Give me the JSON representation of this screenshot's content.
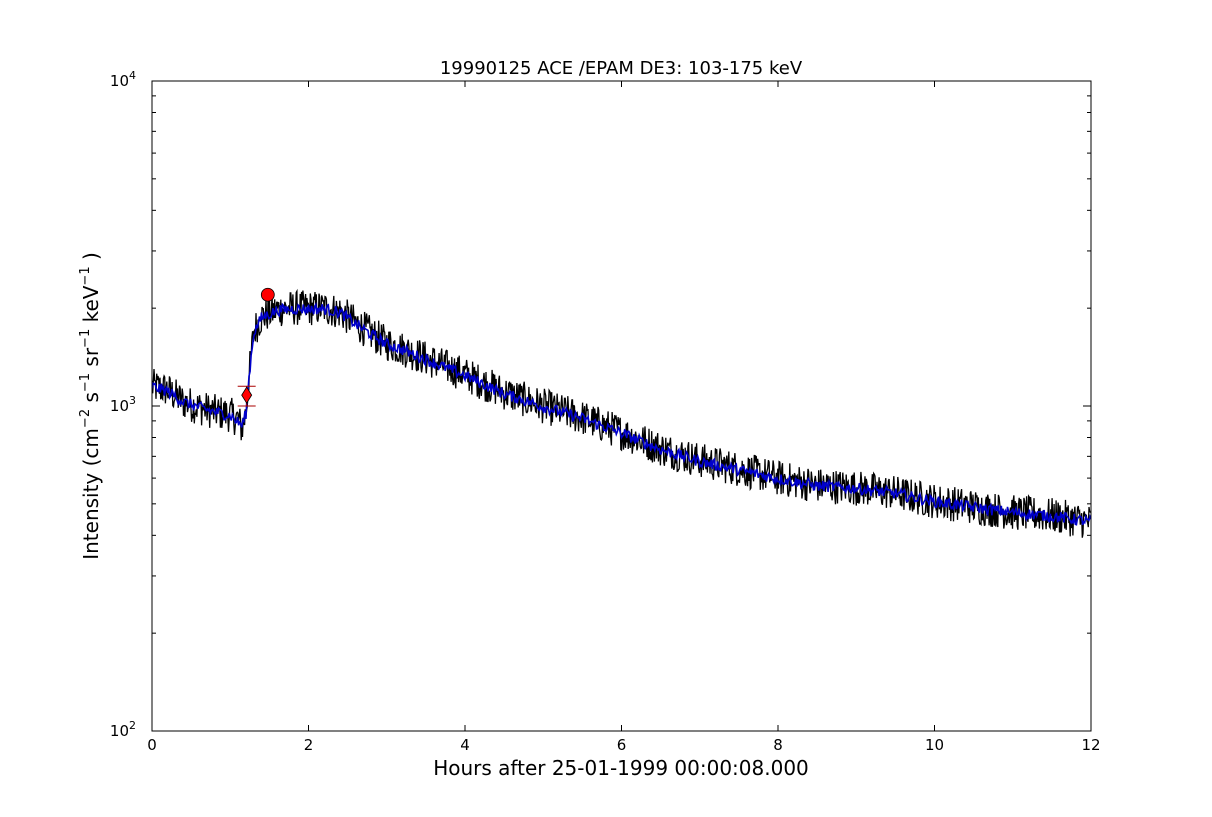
{
  "chart_data": {
    "type": "line",
    "title": "19990125 ACE /EPAM DE3: 103-175 keV",
    "xlabel": "Hours after 25-01-1999 00:00:08.000",
    "ylabel": {
      "prefix": "Intensity (cm",
      "exp1": "−2",
      "mid1": " s",
      "exp2": "−1",
      "mid2": " sr",
      "exp3": "−1",
      "mid3": " keV",
      "exp4": "−1",
      "suffix": " )"
    },
    "xlim": [
      0,
      12
    ],
    "ylim": [
      100,
      10000
    ],
    "yscale": "log",
    "grid": false,
    "x_ticks": [
      0,
      2,
      4,
      6,
      8,
      10,
      12
    ],
    "x_tick_labels": [
      "0",
      "2",
      "4",
      "6",
      "8",
      "10",
      "12"
    ],
    "y_ticks": [
      {
        "value": 100,
        "base": "10",
        "exp": "2"
      },
      {
        "value": 1000,
        "base": "10",
        "exp": "3"
      },
      {
        "value": 10000,
        "base": "10",
        "exp": "4"
      }
    ],
    "series": [
      {
        "role": "raw",
        "color": "#000000",
        "points": [
          [
            0,
            1150
          ],
          [
            0.2,
            1120
          ],
          [
            0.4,
            1030
          ],
          [
            0.6,
            990
          ],
          [
            0.8,
            960
          ],
          [
            1.0,
            940
          ],
          [
            1.1,
            910
          ],
          [
            1.15,
            850
          ],
          [
            1.2,
            950
          ],
          [
            1.25,
            1300
          ],
          [
            1.3,
            1700
          ],
          [
            1.4,
            1880
          ],
          [
            1.6,
            1980
          ],
          [
            1.8,
            2000
          ],
          [
            2.0,
            2000
          ],
          [
            2.2,
            2000
          ],
          [
            2.4,
            1950
          ],
          [
            2.6,
            1800
          ],
          [
            2.8,
            1670
          ],
          [
            3.0,
            1560
          ],
          [
            3.2,
            1500
          ],
          [
            3.5,
            1400
          ],
          [
            4.0,
            1250
          ],
          [
            4.5,
            1100
          ],
          [
            5.0,
            1000
          ],
          [
            5.5,
            920
          ],
          [
            6.0,
            830
          ],
          [
            6.5,
            740
          ],
          [
            7.0,
            680
          ],
          [
            7.5,
            640
          ],
          [
            8.0,
            600
          ],
          [
            8.5,
            570
          ],
          [
            9.0,
            560
          ],
          [
            9.5,
            540
          ],
          [
            10.0,
            510
          ],
          [
            10.5,
            490
          ],
          [
            11.0,
            470
          ],
          [
            11.5,
            460
          ],
          [
            12.0,
            440
          ]
        ]
      },
      {
        "role": "smoothed",
        "color": "#0000cc",
        "points": [
          [
            0,
            1150
          ],
          [
            0.2,
            1110
          ],
          [
            0.4,
            1030
          ],
          [
            0.6,
            990
          ],
          [
            0.8,
            960
          ],
          [
            1.0,
            935
          ],
          [
            1.15,
            870
          ],
          [
            1.2,
            950
          ],
          [
            1.25,
            1300
          ],
          [
            1.3,
            1680
          ],
          [
            1.4,
            1870
          ],
          [
            1.6,
            1970
          ],
          [
            1.8,
            1990
          ],
          [
            2.0,
            1990
          ],
          [
            2.2,
            1990
          ],
          [
            2.4,
            1940
          ],
          [
            2.6,
            1790
          ],
          [
            2.8,
            1660
          ],
          [
            3.0,
            1550
          ],
          [
            3.2,
            1490
          ],
          [
            3.5,
            1390
          ],
          [
            4.0,
            1240
          ],
          [
            4.5,
            1090
          ],
          [
            5.0,
            995
          ],
          [
            5.5,
            915
          ],
          [
            6.0,
            825
          ],
          [
            6.5,
            735
          ],
          [
            7.0,
            675
          ],
          [
            7.5,
            635
          ],
          [
            8.0,
            598
          ],
          [
            8.5,
            568
          ],
          [
            9.0,
            558
          ],
          [
            9.5,
            538
          ],
          [
            10.0,
            508
          ],
          [
            10.5,
            488
          ],
          [
            11.0,
            470
          ],
          [
            11.5,
            458
          ],
          [
            12.0,
            440
          ]
        ]
      }
    ],
    "markers": [
      {
        "type": "diamond",
        "x": 1.21,
        "y": 1080,
        "color": "#ff0000",
        "error_low": 1000,
        "error_high": 1150
      },
      {
        "type": "circle",
        "x": 1.48,
        "y": 2200,
        "color": "#ff0000"
      }
    ]
  }
}
